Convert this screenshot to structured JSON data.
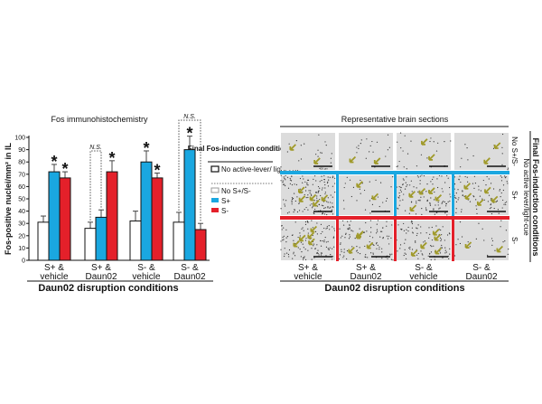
{
  "chart_data": {
    "type": "bar",
    "title": "Fos immunohistochemistry",
    "ylabel": "Fos-positive nuclei/mm² in IL",
    "xlabel": "Daun02 disruption conditions",
    "ylim": [
      0,
      100
    ],
    "yticks": [
      0,
      10,
      20,
      30,
      40,
      50,
      60,
      70,
      80,
      90,
      100
    ],
    "categories": [
      [
        "S+ &",
        "vehicle"
      ],
      [
        "S+ &",
        "Daun02"
      ],
      [
        "S- &",
        "vehicle"
      ],
      [
        "S- &",
        "Daun02"
      ]
    ],
    "series": [
      {
        "name": "No S+/S-",
        "color": "#ffffff",
        "values": [
          31,
          26,
          32,
          31
        ],
        "error": [
          5,
          5,
          8,
          8
        ]
      },
      {
        "name": "S+",
        "color": "#1aa7e0",
        "values": [
          72,
          35,
          80,
          90
        ],
        "error": [
          6,
          6,
          9,
          11
        ]
      },
      {
        "name": "S-",
        "color": "#e4202a",
        "values": [
          67,
          72,
          67,
          25
        ],
        "error": [
          5,
          9,
          4,
          5
        ]
      }
    ],
    "significance": [
      {
        "category": 0,
        "series": 1,
        "label": "*"
      },
      {
        "category": 0,
        "series": 2,
        "label": "*"
      },
      {
        "category": 1,
        "series": 2,
        "label": "*"
      },
      {
        "category": 2,
        "series": 1,
        "label": "*"
      },
      {
        "category": 2,
        "series": 2,
        "label": "*"
      },
      {
        "category": 3,
        "series": 1,
        "label": "*"
      }
    ],
    "ns_brackets": [
      {
        "category": 1,
        "from_series": 0,
        "to_series": 1,
        "label": "N.S."
      },
      {
        "category": 3,
        "from_series": 0,
        "to_series": 2,
        "label": "N.S."
      }
    ],
    "legend": {
      "title": "Final Fos-induction conditions",
      "group_label": "No active-lever/ light-cue",
      "placement": "right"
    }
  },
  "sections": {
    "title": "Representative brain sections",
    "scale_bar": "400 µm",
    "columns": [
      [
        "S+ &",
        "vehicle"
      ],
      [
        "S+ &",
        "Daun02"
      ],
      [
        "S- &",
        "vehicle"
      ],
      [
        "S- &",
        "Daun02"
      ]
    ],
    "rows": [
      "No S+/S-",
      "S+",
      "S-"
    ],
    "row_group_label": "No active lever/light-cue",
    "row_axis_title": "Final Fos-induction conditions",
    "col_axis_title": "Daun02 disruption conditions",
    "row_line_colors": [
      "#1aa7e0",
      "#e4202a"
    ],
    "arrow_color": "#a09a2a"
  }
}
